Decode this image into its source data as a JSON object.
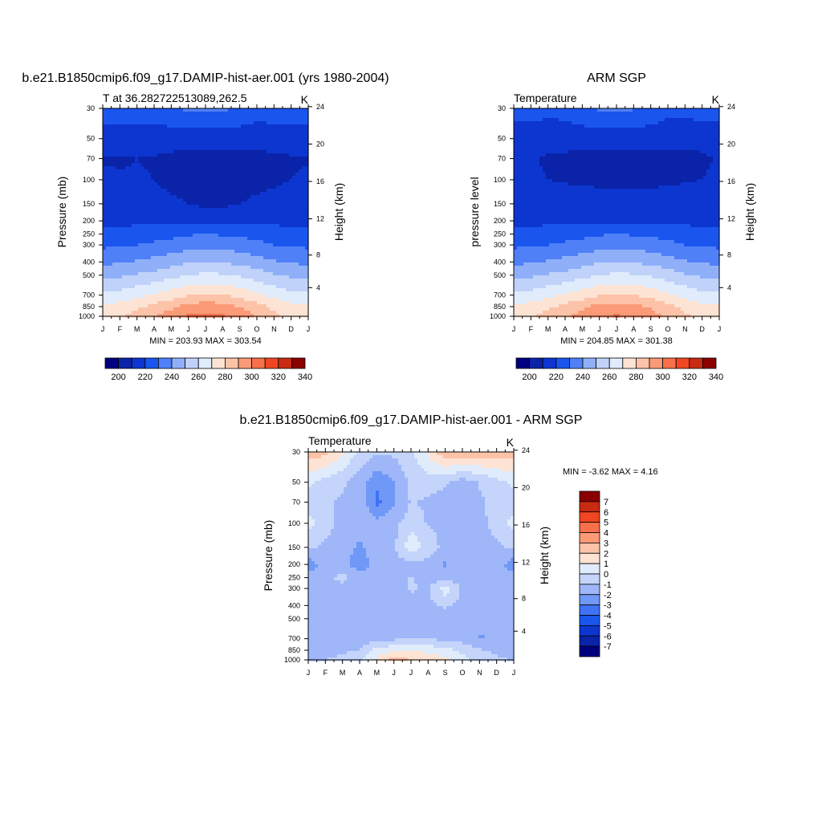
{
  "months": [
    "J",
    "F",
    "M",
    "A",
    "M",
    "J",
    "J",
    "A",
    "S",
    "O",
    "N",
    "D",
    "J"
  ],
  "pressure_ticks": [
    "30",
    "50",
    "70",
    "100",
    "150",
    "200",
    "250",
    "300",
    "400",
    "500",
    "700",
    "850",
    "1000"
  ],
  "pressure_levels": [
    30,
    50,
    70,
    100,
    150,
    200,
    250,
    300,
    400,
    500,
    700,
    850,
    1000
  ],
  "height_ticks": [
    "24",
    "20",
    "16",
    "12",
    "8",
    "4"
  ],
  "height_levels": [
    24,
    20,
    16,
    12,
    8,
    4
  ],
  "abs_colors": [
    "#000080",
    "#0a23a8",
    "#0c36cf",
    "#1a55ee",
    "#4f80f7",
    "#8fb0f9",
    "#c0d2fa",
    "#e0ecfc",
    "#fde3d3",
    "#fcc3a8",
    "#fa9a77",
    "#f7704b",
    "#f14622",
    "#c92a12",
    "#8b0000"
  ],
  "diff_colors": [
    "#000080",
    "#0a23a8",
    "#0c36cf",
    "#1a55ee",
    "#3f72f5",
    "#7098f7",
    "#9fb7f9",
    "#c4d4fa",
    "#e0ecfc",
    "#fde3d3",
    "#fcc3a8",
    "#fa9a77",
    "#f7704b",
    "#f14622",
    "#c92a12",
    "#8b0000"
  ],
  "panels": {
    "model": {
      "title": "b.e21.B1850cmip6.f09_g17.DAMIP-hist-aer.001 (yrs 1980-2004)",
      "subtitle_left": "T at 36.282722513089,262.5",
      "units": "K",
      "ylabel": "Pressure (mb)",
      "ylabel_right": "Height (km)",
      "minmax": "MIN = 203.93 MAX = 303.54"
    },
    "obs": {
      "title": "ARM SGP",
      "subtitle_left": "Temperature",
      "units": "K",
      "ylabel": "pressure level",
      "ylabel_right": "Height (km)",
      "minmax": "MIN = 204.85 MAX = 301.38"
    },
    "diff": {
      "title": "b.e21.B1850cmip6.f09_g17.DAMIP-hist-aer.001 - ARM SGP",
      "subtitle_left": "Temperature",
      "units": "K",
      "ylabel": "Pressure (mb)",
      "ylabel_right": "Height (km)",
      "minmax": "MIN =  -3.62 MAX =   4.16"
    }
  },
  "abs_colorbar_labels": [
    "200",
    "220",
    "240",
    "260",
    "280",
    "300",
    "320",
    "340"
  ],
  "diff_colorbar_labels": [
    "7",
    "6",
    "5",
    "4",
    "3",
    "2",
    "1",
    "0",
    "-1",
    "-2",
    "-3",
    "-4",
    "-5",
    "-6",
    "-7"
  ],
  "chart_data": [
    {
      "type": "heatmap",
      "title": "b.e21.B1850cmip6.f09_g17.DAMIP-hist-aer.001 (yrs 1980-2004)",
      "variable": "T at 36.282722513089,262.5",
      "units": "K",
      "xlabel": "",
      "ylabel": "Pressure (mb)",
      "x": [
        "J",
        "F",
        "M",
        "A",
        "M",
        "J",
        "J",
        "A",
        "S",
        "O",
        "N",
        "D",
        "J"
      ],
      "y": [
        30,
        50,
        70,
        100,
        150,
        200,
        250,
        300,
        400,
        500,
        700,
        850,
        1000
      ],
      "ylim": [
        30,
        1000
      ],
      "min": 203.93,
      "max": 303.54,
      "levels": [
        200,
        210,
        220,
        230,
        240,
        250,
        260,
        270,
        280,
        290,
        300,
        310,
        320,
        330,
        340
      ],
      "values": [
        [
          225,
          225,
          225,
          225,
          229,
          232,
          233,
          232,
          229,
          225,
          225,
          225,
          225
        ],
        [
          215,
          215,
          216,
          215,
          214,
          214,
          214,
          214,
          214,
          214,
          215,
          215,
          215
        ],
        [
          209,
          209,
          210,
          209,
          208,
          207,
          206,
          206,
          206,
          207,
          208,
          209,
          209
        ],
        [
          212,
          211,
          211,
          210,
          207,
          206,
          205,
          205,
          206,
          207,
          208,
          210,
          212
        ],
        [
          215,
          215,
          215,
          214,
          212,
          210,
          208,
          208,
          210,
          212,
          214,
          215,
          215
        ],
        [
          218,
          218,
          218,
          218,
          218,
          218,
          218,
          218,
          218,
          218,
          218,
          218,
          218
        ],
        [
          223,
          223,
          224,
          225,
          227,
          229,
          230,
          229,
          228,
          226,
          224,
          223,
          223
        ],
        [
          228,
          229,
          230,
          232,
          234,
          236,
          237,
          236,
          235,
          233,
          230,
          229,
          228
        ],
        [
          238,
          239,
          241,
          243,
          246,
          249,
          250,
          249,
          247,
          244,
          241,
          239,
          238
        ],
        [
          247,
          248,
          251,
          253,
          257,
          260,
          262,
          261,
          259,
          255,
          251,
          248,
          247
        ],
        [
          262,
          264,
          267,
          271,
          275,
          279,
          281,
          280,
          277,
          272,
          267,
          263,
          262
        ],
        [
          272,
          274,
          278,
          283,
          288,
          293,
          296,
          294,
          290,
          284,
          278,
          273,
          272
        ],
        [
          276,
          279,
          283,
          289,
          295,
          301,
          303,
          301,
          296,
          289,
          282,
          277,
          276
        ]
      ]
    },
    {
      "type": "heatmap",
      "title": "ARM SGP",
      "variable": "Temperature",
      "units": "K",
      "xlabel": "",
      "ylabel": "pressure level",
      "x": [
        "J",
        "F",
        "M",
        "A",
        "M",
        "J",
        "J",
        "A",
        "S",
        "O",
        "N",
        "D",
        "J"
      ],
      "y": [
        30,
        50,
        70,
        100,
        150,
        200,
        250,
        300,
        400,
        500,
        700,
        850,
        1000
      ],
      "ylim": [
        30,
        1000
      ],
      "min": 204.85,
      "max": 301.38,
      "levels": [
        200,
        210,
        220,
        230,
        240,
        250,
        260,
        270,
        280,
        290,
        300,
        310,
        320,
        330,
        340
      ],
      "values": [
        [
          224,
          224,
          223,
          224,
          228,
          231,
          232,
          231,
          227,
          223,
          223,
          224,
          224
        ],
        [
          215,
          215,
          214,
          214,
          214,
          214,
          214,
          214,
          214,
          214,
          214,
          214,
          215
        ],
        [
          211,
          211,
          209,
          208,
          207,
          206,
          206,
          206,
          206,
          206,
          207,
          208,
          211
        ],
        [
          212,
          211,
          210,
          209,
          208,
          207,
          207,
          207,
          207,
          208,
          209,
          210,
          212
        ],
        [
          216,
          216,
          216,
          216,
          216,
          216,
          216,
          216,
          216,
          216,
          216,
          216,
          216
        ],
        [
          218,
          218,
          218,
          218,
          218,
          218,
          218,
          218,
          218,
          218,
          218,
          218,
          218
        ],
        [
          223,
          223,
          224,
          225,
          227,
          229,
          230,
          229,
          228,
          226,
          224,
          223,
          223
        ],
        [
          228,
          229,
          230,
          232,
          234,
          236,
          237,
          236,
          235,
          233,
          230,
          229,
          228
        ],
        [
          238,
          239,
          241,
          243,
          246,
          249,
          250,
          249,
          247,
          244,
          241,
          239,
          238
        ],
        [
          247,
          248,
          251,
          253,
          257,
          260,
          262,
          261,
          259,
          255,
          251,
          248,
          247
        ],
        [
          262,
          264,
          267,
          271,
          275,
          279,
          281,
          280,
          277,
          272,
          267,
          263,
          262
        ],
        [
          272,
          274,
          278,
          283,
          288,
          293,
          295,
          293,
          289,
          283,
          277,
          273,
          272
        ],
        [
          276,
          279,
          283,
          288,
          294,
          299,
          301,
          299,
          294,
          288,
          282,
          277,
          276
        ]
      ]
    },
    {
      "type": "heatmap",
      "title": "b.e21.B1850cmip6.f09_g17.DAMIP-hist-aer.001 - ARM SGP",
      "variable": "Temperature",
      "units": "K",
      "xlabel": "",
      "ylabel": "Pressure (mb)",
      "x": [
        "J",
        "F",
        "M",
        "A",
        "M",
        "J",
        "J",
        "A",
        "S",
        "O",
        "N",
        "D",
        "J"
      ],
      "y": [
        30,
        50,
        70,
        100,
        150,
        200,
        250,
        300,
        400,
        500,
        700,
        850,
        1000
      ],
      "ylim": [
        30,
        1000
      ],
      "min": -3.62,
      "max": 4.16,
      "levels": [
        -7,
        -6,
        -5,
        -4,
        -3,
        -2,
        -1,
        0,
        1,
        2,
        3,
        4,
        5,
        6,
        7
      ],
      "values": [
        [
          2.6,
          2.4,
          1.2,
          -0.3,
          -0.8,
          -0.8,
          -0.3,
          1.2,
          2.8,
          3.0,
          2.6,
          2.8,
          2.6
        ],
        [
          0.3,
          -0.4,
          -0.8,
          -1.5,
          -2.8,
          -2.0,
          -0.7,
          -0.4,
          -0.8,
          -1.6,
          -0.9,
          -0.4,
          0.3
        ],
        [
          -0.6,
          -0.8,
          -1.2,
          -1.2,
          -3.3,
          -2.2,
          -0.9,
          -1.2,
          -1.6,
          -1.8,
          -1.2,
          -0.6,
          -0.6
        ],
        [
          0.4,
          -0.6,
          -1.3,
          -1.4,
          -1.6,
          -1.3,
          -0.4,
          -1.1,
          -1.2,
          -1.4,
          -1.3,
          -0.6,
          0.4
        ],
        [
          -0.7,
          -1.2,
          -1.5,
          -2.2,
          -1.4,
          -1.2,
          0.8,
          -0.4,
          -1.4,
          -1.6,
          -1.4,
          -1.2,
          -0.7
        ],
        [
          -2.7,
          -1.4,
          -1.6,
          -2.6,
          -1.6,
          -1.4,
          -1.4,
          -1.4,
          -2.1,
          -1.6,
          -1.6,
          -1.4,
          -2.7
        ],
        [
          -1.6,
          -1.4,
          -0.6,
          -1.6,
          -1.6,
          -1.3,
          -0.9,
          -1.3,
          -1.6,
          -1.5,
          -1.4,
          -1.5,
          -1.6
        ],
        [
          -1.4,
          -1.5,
          -1.5,
          -1.6,
          -1.5,
          -1.4,
          -0.9,
          -1.2,
          0.6,
          -1.2,
          -1.4,
          -1.5,
          -1.4
        ],
        [
          -1.6,
          -1.5,
          -1.6,
          -1.5,
          -1.5,
          -1.4,
          -1.3,
          -1.2,
          -0.9,
          -1.3,
          -1.4,
          -1.5,
          -1.6
        ],
        [
          -1.6,
          -1.5,
          -1.6,
          -1.5,
          -1.6,
          -1.4,
          -1.3,
          -1.3,
          -1.2,
          -1.3,
          -1.5,
          -1.5,
          -1.6
        ],
        [
          -1.8,
          -2.0,
          -1.8,
          -1.6,
          -1.4,
          -1.2,
          -1.1,
          -1.1,
          -1.2,
          -1.3,
          -2.1,
          -2.0,
          -1.8
        ],
        [
          -1.8,
          -1.6,
          -1.2,
          -1.0,
          0.4,
          0.8,
          0.9,
          0.7,
          0.4,
          -0.4,
          -0.8,
          -1.4,
          -1.8
        ],
        [
          -1.2,
          -1.0,
          -0.6,
          -0.2,
          1.2,
          2.4,
          2.0,
          1.6,
          1.2,
          0.4,
          -0.4,
          -0.6,
          -1.2
        ]
      ]
    }
  ]
}
